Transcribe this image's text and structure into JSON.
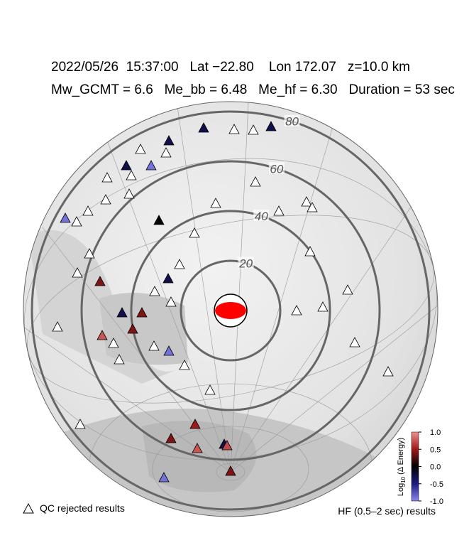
{
  "header": {
    "line1": "2022/05/26  15:37:00   Lat −22.80    Lon 172.07   z=10.0 km",
    "line2": "Mw_GCMT = 6.6   Me_bb = 6.48   Me_hf = 6.30   Duration = 53 sec"
  },
  "distance_rings": [
    20,
    40,
    60,
    80
  ],
  "stations": {
    "values": [
      -0.3,
      -0.3,
      -0.3,
      -0.3,
      -0.9,
      -0.9,
      0.0,
      0.4,
      -0.3,
      -0.3,
      0.4,
      0.4,
      0.75,
      -0.9,
      0.4,
      0.5,
      0.75,
      -0.3,
      0.7,
      0.4,
      -0.9
    ]
  },
  "colorbar": {
    "label": {
      "base": "Log",
      "subscript": "10",
      "rest": "(Δ Energy)"
    },
    "lim": [
      -1,
      1
    ],
    "ticks": [
      {
        "value": 1,
        "label": "1.0"
      },
      {
        "value": 0.5,
        "label": "0.5"
      },
      {
        "value": 0,
        "label": "0.0"
      },
      {
        "value": -0.5,
        "label": "-0.5"
      },
      {
        "value": -1,
        "label": "-1.0"
      }
    ]
  },
  "legend": {
    "qc_rejected": "QC rejected results",
    "hf": "HF (0.5–2 sec) results"
  }
}
